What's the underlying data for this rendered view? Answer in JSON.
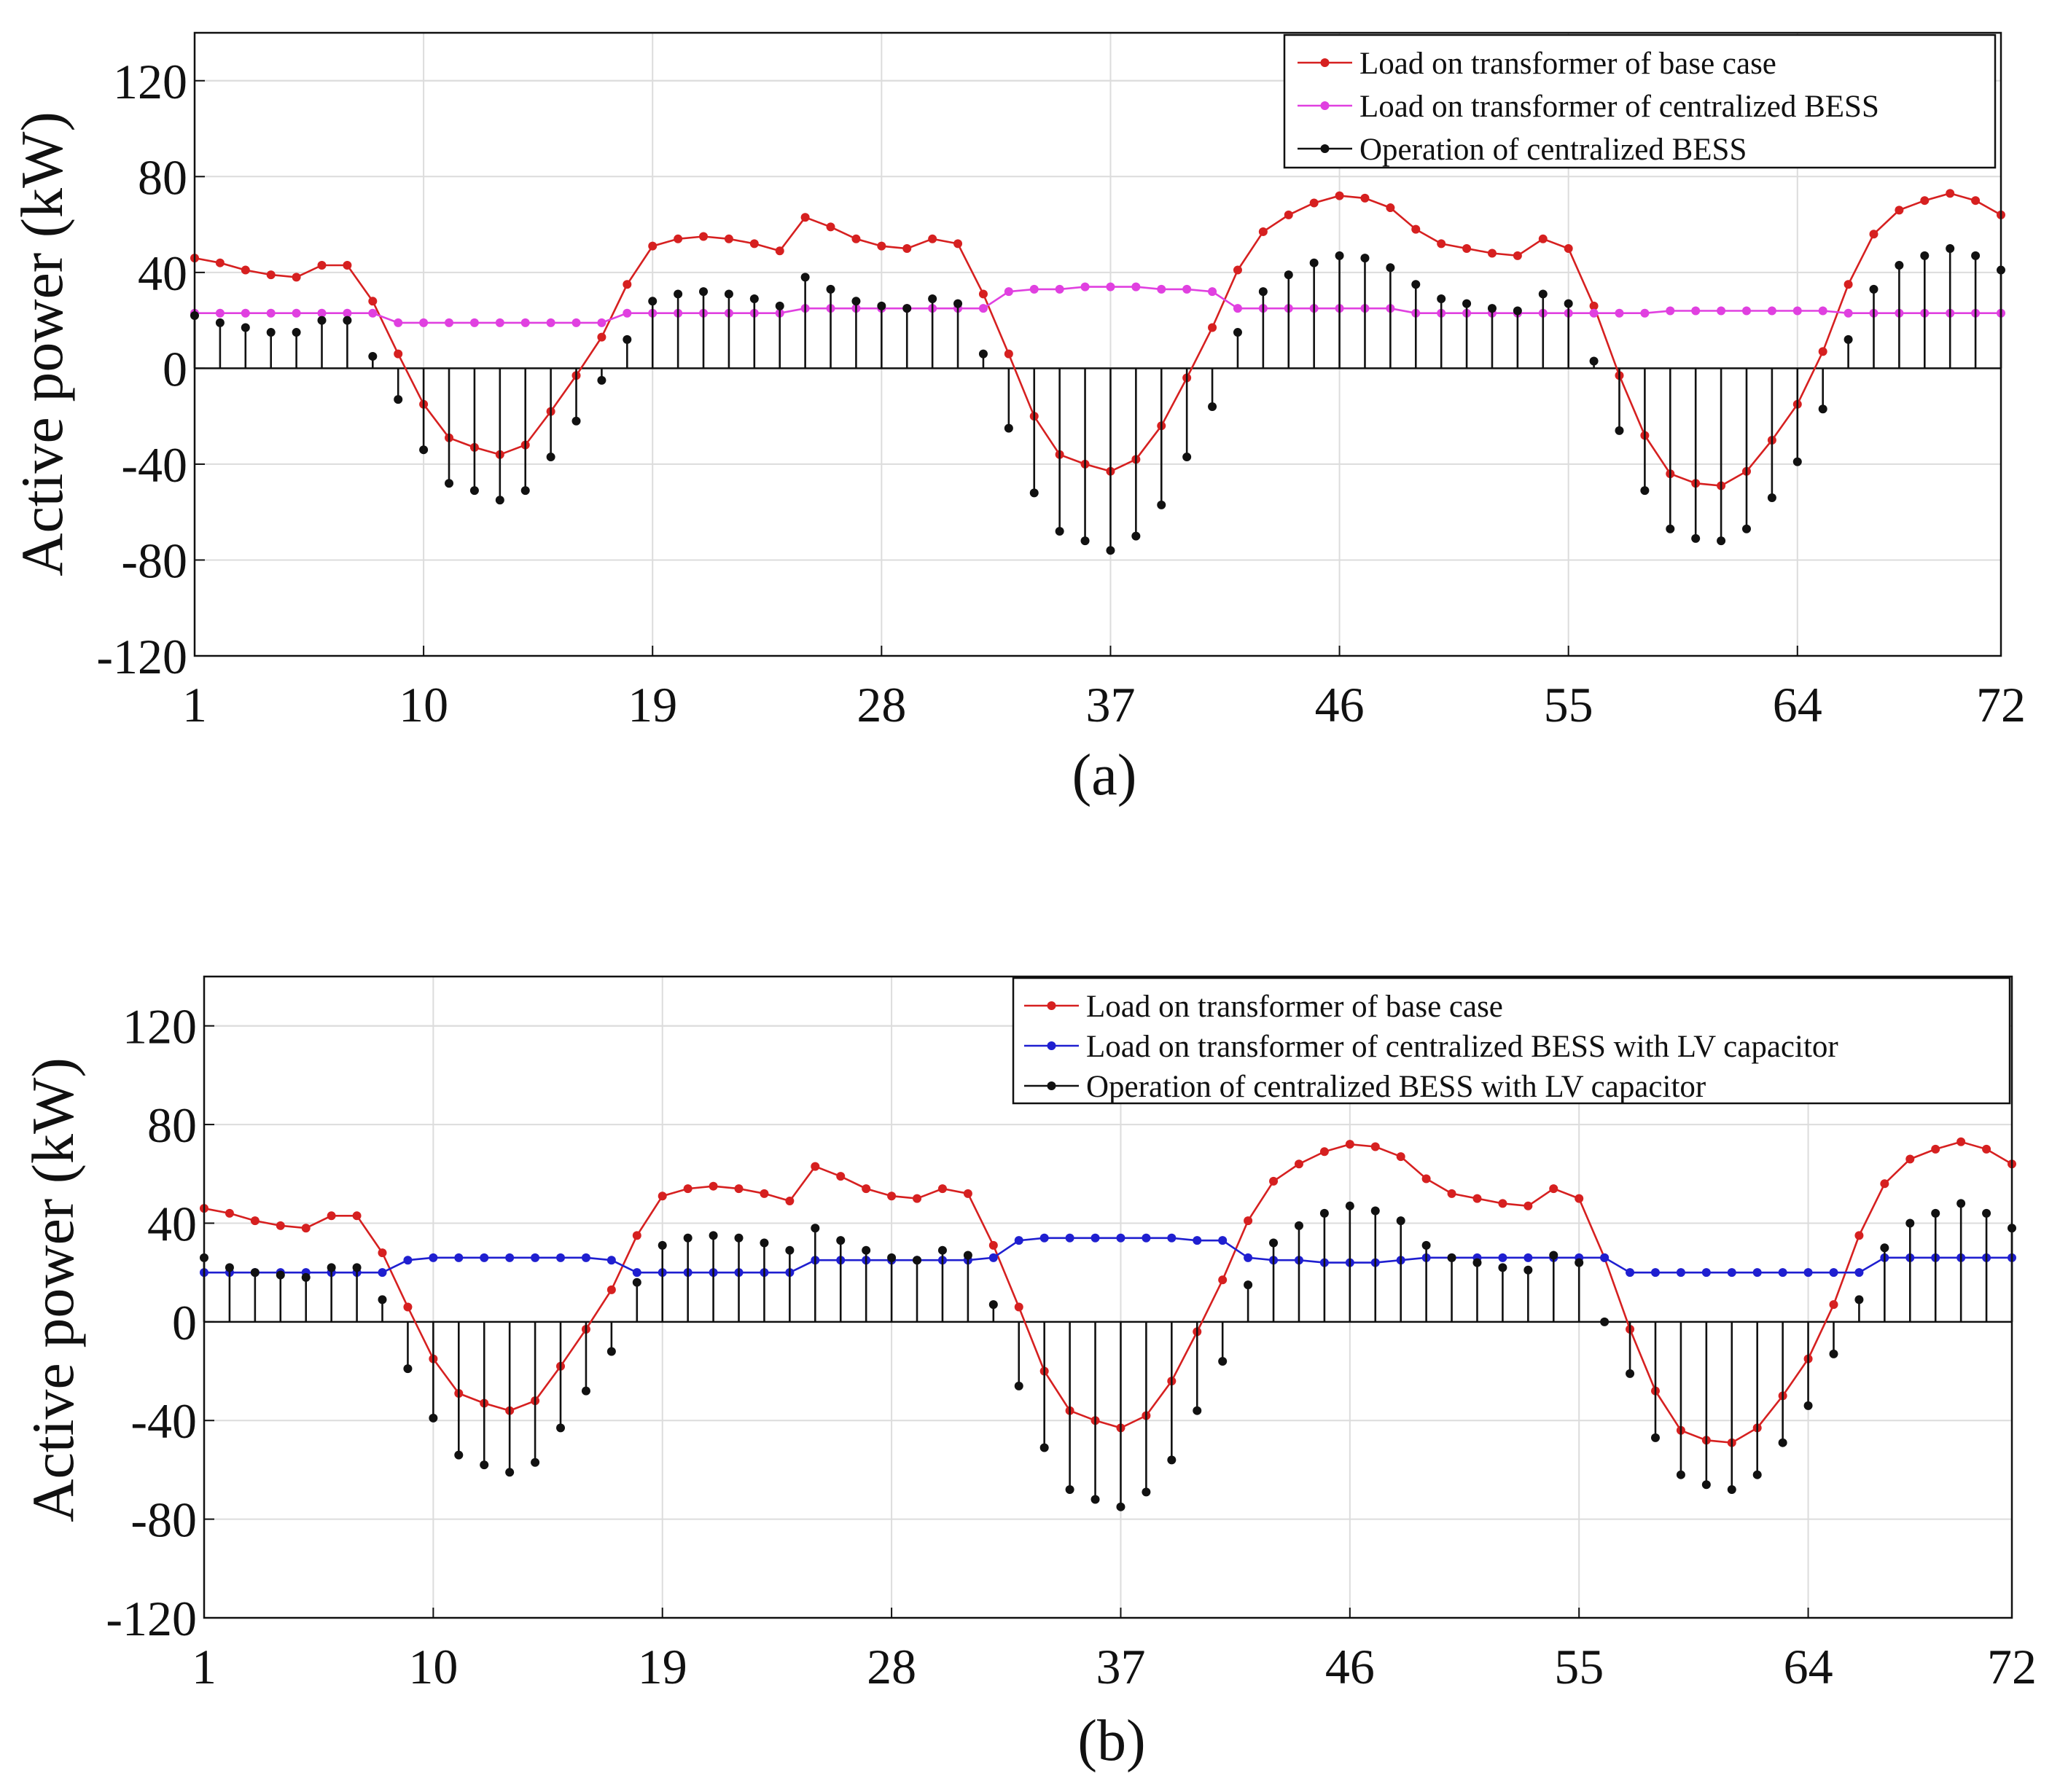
{
  "chart_data": [
    {
      "type": "line",
      "panel_label": "(a)",
      "ylabel": "Active power (kW)",
      "xlim": [
        1,
        72
      ],
      "ylim": [
        -120,
        140
      ],
      "xticks": [
        1,
        10,
        19,
        28,
        37,
        46,
        55,
        64,
        72
      ],
      "yticks": [
        -120,
        -80,
        -40,
        0,
        40,
        80,
        120
      ],
      "grid": true,
      "legend_position": "top-right",
      "series": [
        {
          "name": "Load on transformer of base case",
          "kind": "line",
          "color": "#d62020",
          "values": [
            46,
            44,
            41,
            39,
            38,
            43,
            43,
            28,
            6,
            -15,
            -29,
            -33,
            -36,
            -32,
            -18,
            -3,
            13,
            35,
            51,
            54,
            55,
            54,
            52,
            49,
            63,
            59,
            54,
            51,
            50,
            54,
            52,
            31,
            6,
            -20,
            -36,
            -40,
            -43,
            -38,
            -24,
            -4,
            17,
            41,
            57,
            64,
            69,
            72,
            71,
            67,
            58,
            52,
            50,
            48,
            47,
            54,
            50,
            26,
            -3,
            -28,
            -44,
            -48,
            -49,
            -43,
            -30,
            -15,
            7,
            35,
            56,
            66,
            70,
            73,
            70,
            64
          ]
        },
        {
          "name": "Load on transformer of centralized BESS",
          "kind": "line",
          "color": "#e040e0",
          "values": [
            23,
            23,
            23,
            23,
            23,
            23,
            23,
            23,
            19,
            19,
            19,
            19,
            19,
            19,
            19,
            19,
            19,
            23,
            23,
            23,
            23,
            23,
            23,
            23,
            25,
            25,
            25,
            25,
            25,
            25,
            25,
            25,
            32,
            33,
            33,
            34,
            34,
            34,
            33,
            33,
            32,
            25,
            25,
            25,
            25,
            25,
            25,
            25,
            23,
            23,
            23,
            23,
            23,
            23,
            23,
            23,
            23,
            23,
            24,
            24,
            24,
            24,
            24,
            24,
            24,
            23,
            23,
            23,
            23,
            23,
            23,
            23
          ]
        },
        {
          "name": "Operation of centralized BESS",
          "kind": "stem",
          "color": "#111111",
          "values": [
            22,
            19,
            17,
            15,
            15,
            20,
            20,
            5,
            -13,
            -34,
            -48,
            -51,
            -55,
            -51,
            -37,
            -22,
            -5,
            12,
            28,
            31,
            32,
            31,
            29,
            26,
            38,
            33,
            28,
            26,
            25,
            29,
            27,
            6,
            -25,
            -52,
            -68,
            -72,
            -76,
            -70,
            -57,
            -37,
            -16,
            15,
            32,
            39,
            44,
            47,
            46,
            42,
            35,
            29,
            27,
            25,
            24,
            31,
            27,
            3,
            -26,
            -51,
            -67,
            -71,
            -72,
            -67,
            -54,
            -39,
            -17,
            12,
            33,
            43,
            47,
            50,
            47,
            41
          ]
        }
      ]
    },
    {
      "type": "line",
      "panel_label": "(b)",
      "ylabel": "Active power (kW)",
      "xlim": [
        1,
        72
      ],
      "ylim": [
        -120,
        140
      ],
      "xticks": [
        1,
        10,
        19,
        28,
        37,
        46,
        55,
        64,
        72
      ],
      "yticks": [
        -120,
        -80,
        -40,
        0,
        40,
        80,
        120
      ],
      "grid": true,
      "legend_position": "top-right",
      "series": [
        {
          "name": "Load on transformer of base case",
          "kind": "line",
          "color": "#d62020",
          "values": [
            46,
            44,
            41,
            39,
            38,
            43,
            43,
            28,
            6,
            -15,
            -29,
            -33,
            -36,
            -32,
            -18,
            -3,
            13,
            35,
            51,
            54,
            55,
            54,
            52,
            49,
            63,
            59,
            54,
            51,
            50,
            54,
            52,
            31,
            6,
            -20,
            -36,
            -40,
            -43,
            -38,
            -24,
            -4,
            17,
            41,
            57,
            64,
            69,
            72,
            71,
            67,
            58,
            52,
            50,
            48,
            47,
            54,
            50,
            26,
            -3,
            -28,
            -44,
            -48,
            -49,
            -43,
            -30,
            -15,
            7,
            35,
            56,
            66,
            70,
            73,
            70,
            64
          ]
        },
        {
          "name": "Load on transformer of centralized BESS with LV capacitor",
          "kind": "line",
          "color": "#1f1fd0",
          "values": [
            20,
            20,
            20,
            20,
            20,
            20,
            20,
            20,
            25,
            26,
            26,
            26,
            26,
            26,
            26,
            26,
            25,
            20,
            20,
            20,
            20,
            20,
            20,
            20,
            25,
            25,
            25,
            25,
            25,
            25,
            25,
            26,
            33,
            34,
            34,
            34,
            34,
            34,
            34,
            33,
            33,
            26,
            25,
            25,
            24,
            24,
            24,
            25,
            26,
            26,
            26,
            26,
            26,
            26,
            26,
            26,
            20,
            20,
            20,
            20,
            20,
            20,
            20,
            20,
            20,
            20,
            26,
            26,
            26,
            26,
            26,
            26
          ]
        },
        {
          "name": "Operation of centralized BESS with LV capacitor",
          "kind": "stem",
          "color": "#111111",
          "values": [
            26,
            22,
            20,
            19,
            18,
            22,
            22,
            9,
            -19,
            -39,
            -54,
            -58,
            -61,
            -57,
            -43,
            -28,
            -12,
            16,
            31,
            34,
            35,
            34,
            32,
            29,
            38,
            33,
            29,
            26,
            25,
            29,
            27,
            7,
            -26,
            -51,
            -68,
            -72,
            -75,
            -69,
            -56,
            -36,
            -16,
            15,
            32,
            39,
            44,
            47,
            45,
            41,
            31,
            26,
            24,
            22,
            21,
            27,
            24,
            0,
            -21,
            -47,
            -62,
            -66,
            -68,
            -62,
            -49,
            -34,
            -13,
            9,
            30,
            40,
            44,
            48,
            44,
            38
          ]
        }
      ]
    }
  ]
}
